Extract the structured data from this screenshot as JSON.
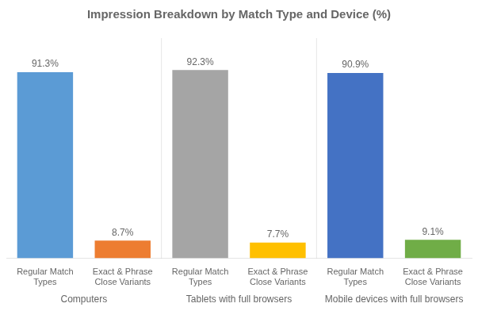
{
  "chart_data": {
    "type": "bar",
    "title": "Impression Breakdown by Match Type and Device (%)",
    "groups": [
      {
        "name": "Computers",
        "categories": [
          "Regular Match\nTypes",
          "Exact & Phrase\nClose Variants"
        ],
        "values": [
          91.3,
          8.7
        ],
        "value_labels": [
          "91.3%",
          "8.7%"
        ],
        "colors": [
          "#5b9bd5",
          "#ed7d31"
        ]
      },
      {
        "name": "Tablets with full browsers",
        "categories": [
          "Regular Match\nTypes",
          "Exact & Phrase\nClose Variants"
        ],
        "values": [
          92.3,
          7.7
        ],
        "value_labels": [
          "92.3%",
          "7.7%"
        ],
        "colors": [
          "#a5a5a5",
          "#ffc000"
        ]
      },
      {
        "name": "Mobile devices with full browsers",
        "categories": [
          "Regular Match\nTypes",
          "Exact & Phrase\nClose Variants"
        ],
        "values": [
          90.9,
          9.1
        ],
        "value_labels": [
          "90.9%",
          "9.1%"
        ],
        "colors": [
          "#4472c4",
          "#70ad47"
        ]
      }
    ],
    "ylim": [
      0,
      108
    ],
    "data_labels": true,
    "tick_labels": "x",
    "grid": false
  }
}
